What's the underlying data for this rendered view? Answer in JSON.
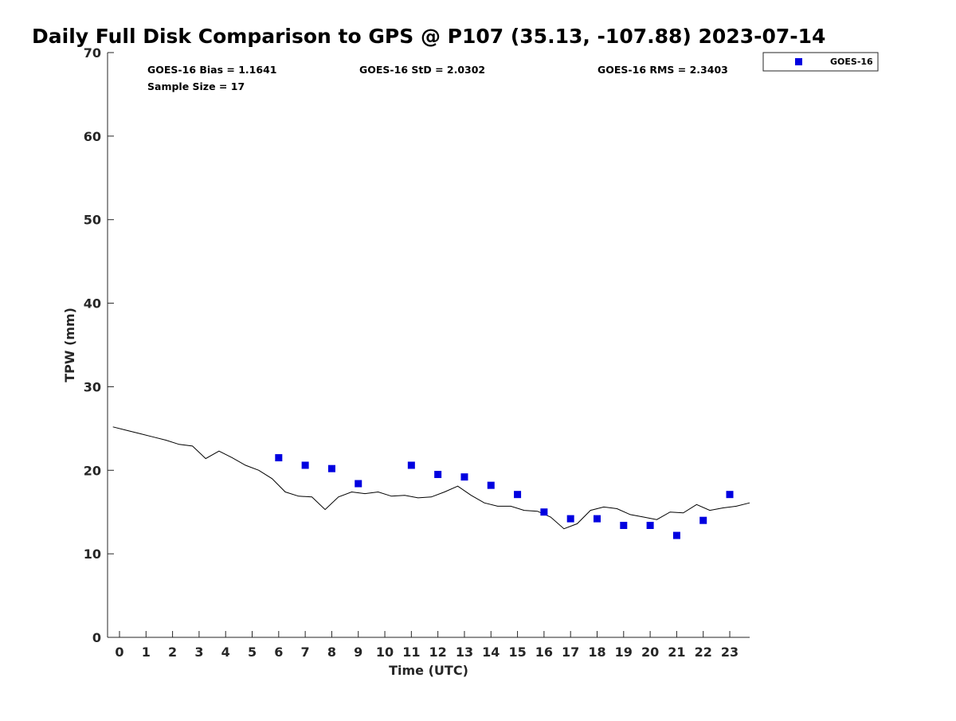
{
  "chart_data": {
    "type": "scatter",
    "title": "Daily Full Disk Comparison to GPS @ P107 (35.13, -107.88) 2023-07-14",
    "xlabel": "Time (UTC)",
    "ylabel": "TPW (mm)",
    "xlim": [
      -0.45,
      23.75
    ],
    "ylim": [
      0,
      70
    ],
    "x_ticks": [
      0,
      1,
      2,
      3,
      4,
      5,
      6,
      7,
      8,
      9,
      10,
      11,
      12,
      13,
      14,
      15,
      16,
      17,
      18,
      19,
      20,
      21,
      22,
      23
    ],
    "x_tick_labels": [
      "0",
      "1",
      "2",
      "3",
      "4",
      "5",
      "6",
      "7",
      "8",
      "9",
      "10",
      "11",
      "12",
      "13",
      "14",
      "15",
      "16",
      "17",
      "18",
      "19",
      "20",
      "21",
      "22",
      "23"
    ],
    "y_ticks": [
      0,
      10,
      20,
      30,
      40,
      50,
      60,
      70
    ],
    "y_tick_labels": [
      "0",
      "10",
      "20",
      "30",
      "40",
      "50",
      "60",
      "70"
    ],
    "grid": false,
    "legend_position": "top-right",
    "annotations": {
      "bias": "GOES-16 Bias = 1.1641",
      "std": "GOES-16 StD = 2.0302",
      "rms": "GOES-16 RMS = 2.3403",
      "sample_size": "Sample Size = 17"
    },
    "series": [
      {
        "name": "GOES-16",
        "kind": "scatter",
        "marker": "square",
        "color": "#0000e0",
        "x": [
          6,
          7,
          8,
          9,
          11,
          12,
          13,
          14,
          15,
          16,
          17,
          18,
          19,
          20,
          21,
          22,
          23
        ],
        "y": [
          21.5,
          20.6,
          20.2,
          18.4,
          20.6,
          19.5,
          19.2,
          18.2,
          17.1,
          15.0,
          14.2,
          14.2,
          13.4,
          13.4,
          12.2,
          14.0,
          17.1
        ]
      },
      {
        "kind": "line",
        "color": "#000000",
        "x": [
          -0.25,
          0.25,
          0.75,
          1.25,
          1.75,
          2.25,
          2.75,
          3.25,
          3.75,
          4.25,
          4.75,
          5.25,
          5.75,
          6.25,
          6.75,
          7.25,
          7.75,
          8.25,
          8.75,
          9.25,
          9.75,
          10.25,
          10.75,
          11.25,
          11.75,
          12.25,
          12.75,
          13.25,
          13.75,
          14.25,
          14.75,
          15.25,
          15.75,
          16.25,
          16.75,
          17.25,
          17.75,
          18.25,
          18.75,
          19.25,
          19.75,
          20.25,
          20.75,
          21.25,
          21.75,
          22.25,
          22.75,
          23.25,
          23.75
        ],
        "y": [
          25.2,
          24.8,
          24.4,
          24.0,
          23.6,
          23.1,
          22.9,
          21.4,
          22.3,
          21.5,
          20.6,
          20.0,
          19.0,
          17.4,
          16.9,
          16.8,
          15.3,
          16.8,
          17.4,
          17.2,
          17.4,
          16.9,
          17.0,
          16.7,
          16.8,
          17.4,
          18.1,
          17.0,
          16.1,
          15.7,
          15.7,
          15.2,
          15.1,
          14.4,
          13.0,
          13.6,
          15.2,
          15.6,
          15.4,
          14.7,
          14.4,
          14.1,
          15.0,
          14.9,
          15.9,
          15.2,
          15.5,
          15.7,
          16.1
        ]
      }
    ]
  }
}
